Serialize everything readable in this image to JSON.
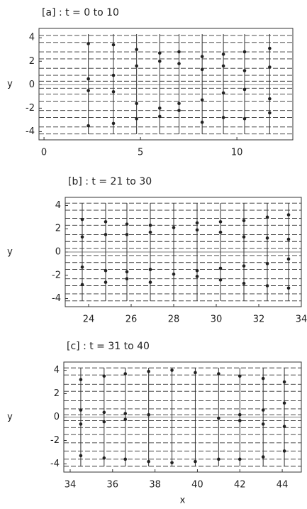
{
  "chart_data": [
    {
      "type": "line",
      "title": "[a] : t = 0 to 10",
      "ylabel": "y",
      "xlim": [
        -0.26,
        12.9
      ],
      "ylim": [
        -4.7,
        4.8
      ],
      "xticks": [
        0,
        5,
        10
      ],
      "yticks": [
        -4,
        -2,
        0,
        2,
        4
      ],
      "streaklines": [
        4.2,
        3.6,
        2.8,
        2.2,
        1.4,
        0.8,
        0.3,
        -0.3,
        -0.8,
        -1.4,
        -2.2,
        -2.8,
        -3.6,
        -4.2
      ],
      "timelines": [
        {
          "x": 2.3,
          "y": [
            3.5,
            0.5,
            -0.5,
            -3.5
          ]
        },
        {
          "x": 3.6,
          "y": [
            3.4,
            0.8,
            -0.6,
            -3.3
          ]
        },
        {
          "x": 4.8,
          "y": [
            3.0,
            1.6,
            -1.6,
            -2.9
          ]
        },
        {
          "x": 6.0,
          "y": [
            2.7,
            2.0,
            -2.0,
            -2.7
          ]
        },
        {
          "x": 7.0,
          "y": [
            2.8,
            1.8,
            -1.6,
            -2.2
          ]
        },
        {
          "x": 8.2,
          "y": [
            2.4,
            1.3,
            -1.3,
            -3.2
          ]
        },
        {
          "x": 9.3,
          "y": [
            2.6,
            1.6,
            -0.7,
            -2.8
          ]
        },
        {
          "x": 10.4,
          "y": [
            2.8,
            1.2,
            -0.4,
            -2.9
          ]
        },
        {
          "x": 11.7,
          "y": [
            3.1,
            1.5,
            -1.2,
            -2.4
          ]
        }
      ]
    },
    {
      "type": "line",
      "title": "[b] : t = 21 to 30",
      "ylabel": "y",
      "xlim": [
        22.9,
        34
      ],
      "ylim": [
        -4.7,
        4.7
      ],
      "xticks": [
        24,
        26,
        28,
        30,
        32,
        34
      ],
      "yticks": [
        -4,
        -2,
        0,
        2,
        4
      ],
      "streaklines": [
        4.2,
        3.6,
        2.9,
        2.3,
        1.5,
        0.9,
        0.3,
        -0.3,
        -0.9,
        -1.5,
        -2.3,
        -2.9,
        -3.6,
        -4.2
      ],
      "timelines": [
        {
          "x": 23.7,
          "y": [
            2.8,
            1.3,
            -1.3,
            -2.8
          ]
        },
        {
          "x": 24.8,
          "y": [
            2.6,
            1.5,
            -1.6,
            -2.6
          ]
        },
        {
          "x": 25.8,
          "y": [
            2.4,
            1.5,
            -1.7,
            -2.3
          ]
        },
        {
          "x": 26.9,
          "y": [
            2.3,
            1.7,
            -1.5,
            -2.6
          ]
        },
        {
          "x": 28.0,
          "y": [
            2.1,
            -1.9
          ]
        },
        {
          "x": 29.1,
          "y": [
            2.5,
            1.9,
            -1.6,
            -2.1
          ]
        },
        {
          "x": 30.2,
          "y": [
            2.6,
            1.7,
            -1.4,
            -2.4
          ]
        },
        {
          "x": 31.3,
          "y": [
            2.7,
            1.3,
            -1.2,
            -2.7
          ]
        },
        {
          "x": 32.4,
          "y": [
            3.0,
            1.2,
            -1.0,
            -2.9
          ]
        },
        {
          "x": 33.4,
          "y": [
            3.2,
            1.1,
            -0.6,
            -3.1
          ]
        }
      ]
    },
    {
      "type": "line",
      "title": "[c] : t = 31 to 40",
      "ylabel": "y",
      "xlabel": "x",
      "xlim": [
        33.7,
        44.9
      ],
      "ylim": [
        -4.7,
        4.7
      ],
      "xticks": [
        34,
        36,
        38,
        40,
        42,
        44
      ],
      "yticks": [
        -4,
        -2,
        0,
        2,
        4
      ],
      "streaklines": [
        4.2,
        3.6,
        2.8,
        2.2,
        1.4,
        0.7,
        0.2,
        -0.3,
        -0.9,
        -1.5,
        -2.2,
        -2.9,
        -3.6,
        -4.2
      ],
      "timelines": [
        {
          "x": 34.5,
          "y": [
            3.2,
            0.6,
            -0.6,
            -3.3
          ]
        },
        {
          "x": 35.6,
          "y": [
            3.5,
            0.4,
            -0.4,
            -3.5
          ]
        },
        {
          "x": 36.6,
          "y": [
            3.7,
            0.3,
            -0.2,
            -3.6
          ]
        },
        {
          "x": 37.7,
          "y": [
            3.9,
            0.2,
            -3.8
          ]
        },
        {
          "x": 38.8,
          "y": [
            4.0,
            -3.9
          ]
        },
        {
          "x": 39.9,
          "y": [
            3.8,
            -3.8
          ]
        },
        {
          "x": 41.0,
          "y": [
            3.7,
            -0.1,
            -3.6
          ]
        },
        {
          "x": 42.0,
          "y": [
            3.5,
            0.2,
            -0.3,
            -3.6
          ]
        },
        {
          "x": 43.1,
          "y": [
            3.3,
            0.6,
            -0.6,
            -3.4
          ]
        },
        {
          "x": 44.1,
          "y": [
            3.0,
            1.2,
            -0.8,
            -2.9
          ]
        }
      ]
    }
  ]
}
